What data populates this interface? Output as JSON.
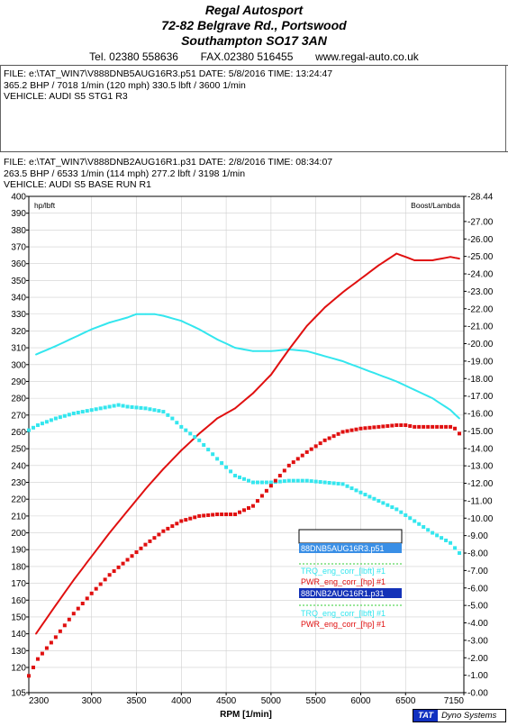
{
  "header": {
    "company": "Regal Autosport",
    "address1": "72-82 Belgrave Rd., Portswood",
    "address2": "Southampton SO17 3AN",
    "tel": "Tel. 02380 558636",
    "fax": "FAX.02380 516455",
    "web": "www.regal-auto.co.uk"
  },
  "run1": {
    "file_line": "FILE: e:\\TAT_WIN7\\V888DNB5AUG16R3.p51  DATE: 5/8/2016  TIME: 13:24:47",
    "result_line": "365.2 BHP / 7018 1/min (120 mph)    330.5 lbft / 3600 1/min",
    "vehicle_line": "VEHICLE: AUDI S5 STG1 R3"
  },
  "run2": {
    "file_line": "FILE: e:\\TAT_WIN7\\V888DNB2AUG16R1.p31  DATE: 2/8/2016  TIME: 08:34:07",
    "result_line": "263.5 BHP / 6533 1/min (114 mph)    277.2 lbft / 3198 1/min",
    "vehicle_line": "VEHICLE: AUDI S5 BASE RUN R1"
  },
  "colors": {
    "torque": "#33e6ee",
    "power": "#e01010",
    "legend_run1_bg": "#3a8fe6",
    "legend_run2_bg": "#1432b8",
    "grid": "#cfcfcf"
  },
  "legend": {
    "run1_name": "88DNB5AUG16R3.p51",
    "run1_trq": "TRQ_eng_corr_[lbft] #1",
    "run1_pwr": "PWR_eng_corr_[hp] #1",
    "run2_name": "88DNB2AUG16R1.p31",
    "run2_trq": "TRQ_eng_corr_[lbft] #1",
    "run2_pwr": "PWR_eng_corr_[hp] #1"
  },
  "brand": {
    "tat": "TAT",
    "name": "Dyno Systems"
  },
  "chart_data": {
    "type": "line",
    "xlabel": "RPM  [1/min]",
    "ylabel": "hp/lbft",
    "y2label": "Boost/Lambda",
    "xlim": [
      2300,
      7150
    ],
    "ylim": [
      105,
      400
    ],
    "y2lim": [
      0.0,
      28.44
    ],
    "x_ticks": [
      "2300",
      "3000",
      "3500",
      "4000",
      "4500",
      "5000",
      "5500",
      "6000",
      "6500",
      "7150"
    ],
    "y_ticks": [
      "105",
      "120",
      "130",
      "140",
      "150",
      "160",
      "170",
      "180",
      "190",
      "200",
      "210",
      "220",
      "230",
      "240",
      "250",
      "260",
      "270",
      "280",
      "290",
      "300",
      "310",
      "320",
      "330",
      "340",
      "350",
      "360",
      "370",
      "380",
      "390",
      "400"
    ],
    "y2_ticks": [
      "-0.00",
      "-1.00",
      "-2.00",
      "-3.00",
      "-4.00",
      "-5.00",
      "-6.00",
      "-7.00",
      "-8.00",
      "-9.00",
      "-10.00",
      "-11.00",
      "-12.00",
      "-13.00",
      "-14.00",
      "-15.00",
      "-16.00",
      "-17.00",
      "-18.00",
      "-19.00",
      "-20.00",
      "-21.00",
      "-22.00",
      "-23.00",
      "-24.00",
      "-25.00",
      "-26.00",
      "-27.00",
      "-28.44"
    ],
    "series": [
      {
        "name": "88DNB5AUG16R3.p51 TRQ_eng_corr_[lbft] #1",
        "style": "line",
        "color": "#33e6ee",
        "x": [
          2380,
          2600,
          2800,
          3000,
          3200,
          3400,
          3500,
          3600,
          3700,
          3800,
          4000,
          4200,
          4400,
          4600,
          4800,
          5000,
          5200,
          5400,
          5600,
          5800,
          6000,
          6200,
          6400,
          6600,
          6800,
          7000,
          7100
        ],
        "y": [
          306,
          311,
          316,
          321,
          325,
          328,
          330,
          330,
          330,
          329,
          326,
          321,
          315,
          310,
          308,
          308,
          309,
          308,
          305,
          302,
          298,
          294,
          290,
          285,
          280,
          273,
          268
        ]
      },
      {
        "name": "88DNB5AUG16R3.p51 PWR_eng_corr_[hp] #1",
        "style": "line",
        "color": "#e01010",
        "x": [
          2380,
          2600,
          2800,
          3000,
          3200,
          3400,
          3600,
          3800,
          4000,
          4200,
          4400,
          4600,
          4800,
          5000,
          5200,
          5400,
          5600,
          5800,
          6000,
          6200,
          6400,
          6600,
          6800,
          6900,
          7000,
          7100
        ],
        "y": [
          140,
          157,
          172,
          186,
          200,
          213,
          226,
          238,
          249,
          259,
          268,
          274,
          283,
          294,
          309,
          323,
          334,
          343,
          351,
          359,
          366,
          362,
          362,
          363,
          364,
          363
        ]
      },
      {
        "name": "88DNB2AUG16R1.p31 TRQ_eng_corr_[lbft] #1",
        "style": "dots",
        "color": "#33e6ee",
        "x": [
          2300,
          2400,
          2600,
          2800,
          3000,
          3200,
          3300,
          3400,
          3600,
          3800,
          3900,
          4000,
          4200,
          4400,
          4600,
          4800,
          5000,
          5200,
          5400,
          5600,
          5800,
          6000,
          6200,
          6400,
          6600,
          6800,
          7000,
          7100
        ],
        "y": [
          261,
          264,
          268,
          271,
          273,
          275,
          276,
          275,
          274,
          272,
          268,
          263,
          255,
          244,
          234,
          230,
          230,
          231,
          231,
          230,
          229,
          224,
          219,
          214,
          207,
          200,
          194,
          188
        ]
      },
      {
        "name": "88DNB2AUG16R1.p31 PWR_eng_corr_[hp] #1",
        "style": "dots",
        "color": "#e01010",
        "x": [
          2300,
          2400,
          2600,
          2800,
          3000,
          3200,
          3400,
          3600,
          3800,
          4000,
          4200,
          4400,
          4600,
          4800,
          5000,
          5200,
          5400,
          5600,
          5800,
          6000,
          6200,
          6400,
          6500,
          6600,
          6800,
          7000,
          7050,
          7100
        ],
        "y": [
          115,
          125,
          138,
          152,
          164,
          175,
          184,
          193,
          201,
          207,
          210,
          211,
          211,
          216,
          228,
          240,
          248,
          255,
          260,
          262,
          263,
          264,
          264,
          263,
          263,
          263,
          262,
          259
        ]
      }
    ]
  }
}
